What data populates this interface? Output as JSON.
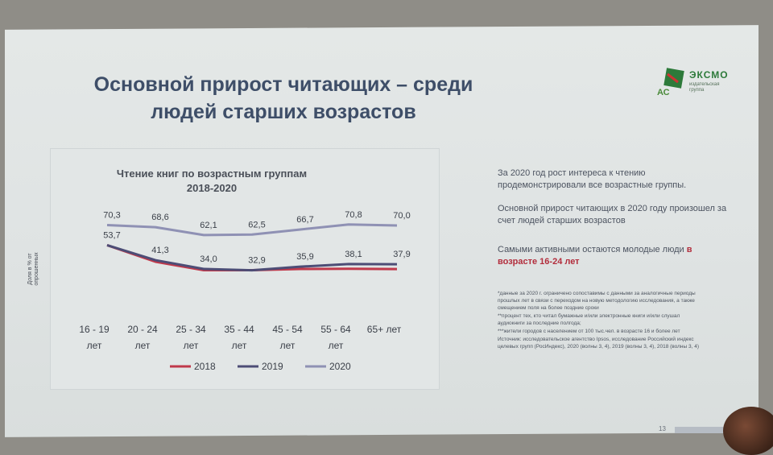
{
  "title_lines": [
    "Основной прирост читающих – среди",
    "людей старших возрастов"
  ],
  "logo": {
    "name": "ЭКСМО",
    "sub": "издательская группа",
    "mark_text": "АС"
  },
  "side": {
    "p1": "За 2020 год рост интереса к чтению продемонстрировали все возрастные группы.",
    "p2": "Основной прирост читающих в 2020 году произошел за счет людей старших возрастов",
    "p3_pre": "Самыми активными остаются молодые люди ",
    "p3_hl": "в возрасте 16-24 лет"
  },
  "notes": [
    "*данные за 2020 г. ограничено сопоставимы с данными за аналогичные периоды прошлых лет в связи с переходом на новую методологию исследования, а также смещением поля на более поздние сроки",
    "**процент тех, кто читал бумажные и/или электронные книги и/или слушал аудиокниги за последние полгода;",
    "***жители городов с населением от 100 тыс.чел. в возрасте 16 и более лет",
    "Источник: исследовательское агентство Ipsos, исследование Российский индекс целевых групп (РосИндекс), 2020 (волны 3, 4), 2019 (волны 3, 4), 2018 (волны 3, 4)"
  ],
  "page_number": "13",
  "chart_data": {
    "type": "line",
    "title": "Чтение книг по возрастным группам 2018-2020",
    "title_lines": [
      "Чтение книг по возрастным группам",
      "2018-2020"
    ],
    "ylabel_lines": [
      "Доля в % от",
      "опрошенных"
    ],
    "categories": [
      [
        "16 - 19",
        "лет"
      ],
      [
        "20 - 24",
        "лет"
      ],
      [
        "25 - 34",
        "лет"
      ],
      [
        "35 - 44",
        "лет"
      ],
      [
        "45 - 54",
        "лет"
      ],
      [
        "55 - 64",
        "лет"
      ],
      [
        "65+ лет"
      ]
    ],
    "ylim": [
      20,
      80
    ],
    "series": [
      {
        "name": "2018",
        "color": "#c0394b",
        "values": [
          53.7,
          40.0,
          33.0,
          33.0,
          34.0,
          34.2,
          33.9
        ],
        "labels": [
          "",
          "",
          "",
          "",
          "",
          "",
          ""
        ]
      },
      {
        "name": "2019",
        "color": "#4d4d76",
        "values": [
          53.7,
          41.3,
          34.0,
          32.9,
          35.9,
          38.1,
          37.9
        ],
        "labels": [
          "53,7",
          "41,3",
          "34,0",
          "32,9",
          "35,9",
          "38,1",
          "37,9"
        ]
      },
      {
        "name": "2020",
        "color": "#8f91b4",
        "values": [
          70.3,
          68.6,
          62.1,
          62.5,
          66.7,
          70.8,
          70.0
        ],
        "labels": [
          "70,3",
          "68,6",
          "62,1",
          "62,5",
          "66,7",
          "70,8",
          "70,0"
        ]
      }
    ],
    "grid": false,
    "legend": "bottom"
  }
}
